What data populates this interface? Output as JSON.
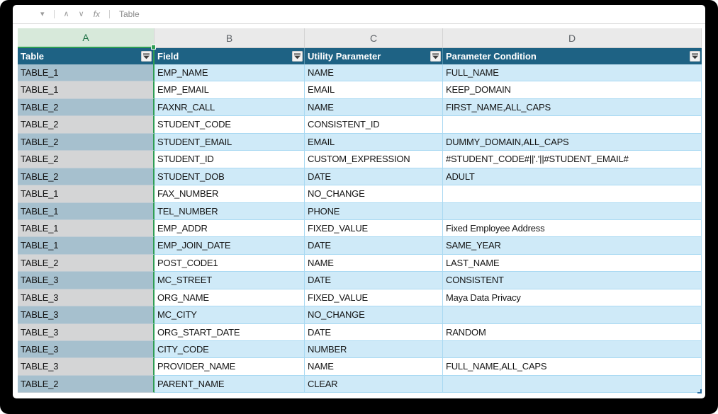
{
  "formula_bar": {
    "dropdown_icon": "▾",
    "up_icon": "∧",
    "down_icon": "∨",
    "fx_label": "fx",
    "value": "Table"
  },
  "column_letters": {
    "a": "A",
    "b": "B",
    "c": "C",
    "d": "D"
  },
  "selected_column": "A",
  "table": {
    "headers": [
      "Table",
      "Field",
      "Utility Parameter",
      "Parameter Condition"
    ],
    "rows": [
      [
        "TABLE_1",
        "EMP_NAME",
        "NAME",
        "FULL_NAME"
      ],
      [
        "TABLE_1",
        "EMP_EMAIL",
        "EMAIL",
        "KEEP_DOMAIN"
      ],
      [
        "TABLE_2",
        "FAXNR_CALL",
        "NAME",
        "FIRST_NAME,ALL_CAPS"
      ],
      [
        "TABLE_2",
        "STUDENT_CODE",
        "CONSISTENT_ID",
        ""
      ],
      [
        "TABLE_2",
        "STUDENT_EMAIL",
        "EMAIL",
        "DUMMY_DOMAIN,ALL_CAPS"
      ],
      [
        "TABLE_2",
        "STUDENT_ID",
        "CUSTOM_EXPRESSION",
        "#STUDENT_CODE#||'.'||#STUDENT_EMAIL#"
      ],
      [
        "TABLE_2",
        "STUDENT_DOB",
        "DATE",
        "ADULT"
      ],
      [
        "TABLE_1",
        "FAX_NUMBER",
        "NO_CHANGE",
        ""
      ],
      [
        "TABLE_1",
        "TEL_NUMBER",
        "PHONE",
        ""
      ],
      [
        "TABLE_1",
        "EMP_ADDR",
        "FIXED_VALUE",
        "Fixed Employee Address"
      ],
      [
        "TABLE_1",
        "EMP_JOIN_DATE",
        "DATE",
        "SAME_YEAR"
      ],
      [
        "TABLE_2",
        "POST_CODE1",
        "NAME",
        "LAST_NAME"
      ],
      [
        "TABLE_3",
        "MC_STREET",
        "DATE",
        "CONSISTENT"
      ],
      [
        "TABLE_3",
        "ORG_NAME",
        "FIXED_VALUE",
        "Maya Data Privacy"
      ],
      [
        "TABLE_3",
        "MC_CITY",
        "NO_CHANGE",
        ""
      ],
      [
        "TABLE_3",
        "ORG_START_DATE",
        "DATE",
        "RANDOM"
      ],
      [
        "TABLE_3",
        "CITY_CODE",
        "NUMBER",
        ""
      ],
      [
        "TABLE_3",
        "PROVIDER_NAME",
        "NAME",
        "FULL_NAME,ALL_CAPS"
      ],
      [
        "TABLE_2",
        "PARENT_NAME",
        "CLEAR",
        ""
      ]
    ]
  },
  "colors": {
    "header_teal": "#1e6284",
    "band_blue": "#cfeaf8",
    "grid_blue": "#a9d9f2",
    "selection_green": "#2f9e54",
    "selected_letter_bg": "#d7e9da",
    "selected_letter_text": "#1e7145",
    "col_a_band_overlay": "#a6c0ce",
    "col_a_plain_overlay": "#d4d5d6",
    "frame_black": "#000000"
  }
}
